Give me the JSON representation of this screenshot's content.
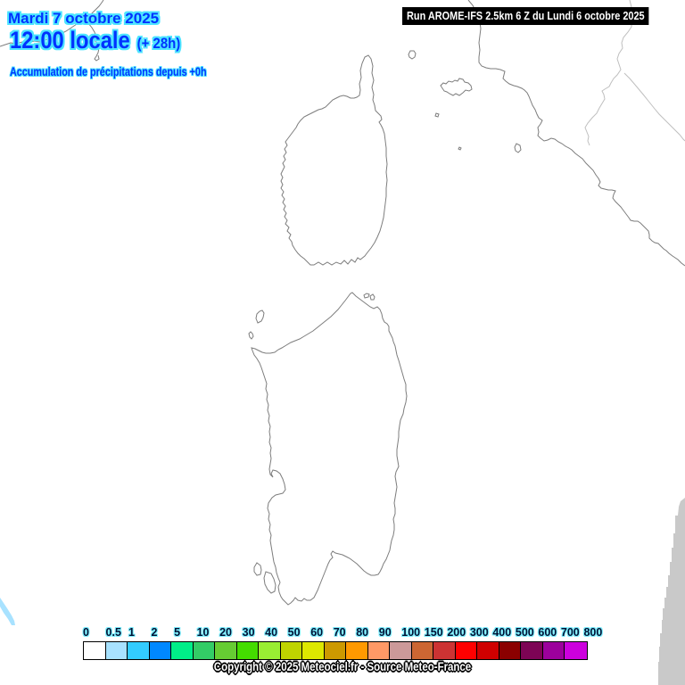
{
  "header": {
    "date_line": "Mardi 7 octobre 2025",
    "time_line": "12:00 locale",
    "offset_label": "(+ 28h)",
    "subtitle": "Accumulation de précipitations depuis +0h",
    "text_color": "#0033FF",
    "glow_color": "#4DE4FF"
  },
  "run_banner": {
    "text": "Run AROME-IFS 2.5km 6 Z du Lundi 6 octobre 2025",
    "bg_color": "#000000",
    "text_color": "#FFFFFF"
  },
  "legend": {
    "values": [
      "0",
      "0.5",
      "1",
      "2",
      "5",
      "10",
      "20",
      "30",
      "40",
      "50",
      "60",
      "70",
      "80",
      "90",
      "100",
      "150",
      "200",
      "300",
      "400",
      "500",
      "600",
      "700",
      "800"
    ],
    "colors": [
      "#FFFFFF",
      "#A8E2FF",
      "#33CCFF",
      "#0088FF",
      "#00EE88",
      "#33CC66",
      "#66CC33",
      "#44DD00",
      "#99EE33",
      "#BFD400",
      "#DDE800",
      "#CC9900",
      "#FF9900",
      "#FF9966",
      "#CC9999",
      "#CC6633",
      "#CC3333",
      "#FF0000",
      "#D00000",
      "#8B0000",
      "#7D0455",
      "#9C009C",
      "#CC00DD"
    ]
  },
  "footer": {
    "copyright": "Copyright © 2025 Meteociel.fr - Source Meteo-France"
  },
  "map": {
    "coastline_color": "#7D7D7D",
    "river_color": "#BFBFBF",
    "outside_domain_color": "#C9C9C9",
    "precip_patch_color": "#A8E2FF"
  }
}
